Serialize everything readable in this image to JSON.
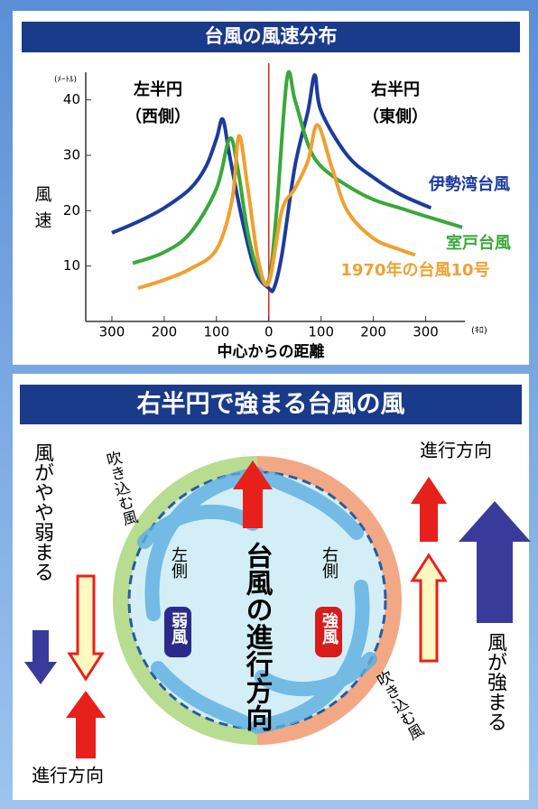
{
  "chart_data": {
    "type": "line",
    "title": "台風の風速分布",
    "x_label": "中心からの距離",
    "y_label": "風速",
    "x_unit": "(ｷﾛ)",
    "y_unit": "(ﾒｰﾄﾙ)",
    "annotations": [
      "左半円",
      "（西側）",
      "右半円",
      "（東側）"
    ],
    "xlim": [
      -350,
      375
    ],
    "ylim": [
      0,
      45
    ],
    "xticks": [
      {
        "value": -300,
        "label": "300"
      },
      {
        "value": -200,
        "label": "200"
      },
      {
        "value": -100,
        "label": "100"
      },
      0,
      100,
      200,
      300
    ],
    "yticks": [
      10,
      20,
      30,
      40
    ],
    "series": [
      {
        "name": "伊勢湾台風",
        "color": "#1c3c9c",
        "x": [
          -300,
          -250,
          -200,
          -150,
          -120,
          -100,
          -88,
          -75,
          -50,
          -25,
          0,
          10,
          25,
          50,
          75,
          88,
          100,
          150,
          200,
          250,
          310
        ],
        "values": [
          16,
          18,
          20.5,
          24,
          28,
          33,
          36.5,
          30,
          18,
          9,
          6,
          6,
          12,
          28,
          38,
          44.5,
          38,
          30,
          26,
          23,
          20.5
        ]
      },
      {
        "name": "室戸台風",
        "color": "#3aa83a",
        "x": [
          -260,
          -200,
          -150,
          -100,
          -75,
          -60,
          -40,
          -20,
          0,
          15,
          35,
          50,
          75,
          100,
          150,
          200,
          250,
          300,
          370
        ],
        "values": [
          10.5,
          12.5,
          16,
          24,
          33,
          28,
          16,
          9,
          7.5,
          20,
          44,
          40,
          32,
          28,
          24.5,
          22,
          20.5,
          19,
          17
        ]
      },
      {
        "name": "1970年の台風10号",
        "color": "#f0a030",
        "x": [
          -250,
          -200,
          -150,
          -100,
          -70,
          -57,
          -40,
          -20,
          0,
          25,
          50,
          75,
          93,
          120,
          150,
          200,
          250,
          280
        ],
        "values": [
          6,
          7.5,
          9.5,
          13,
          22,
          33.5,
          24,
          11,
          7,
          20,
          24,
          29,
          35.5,
          28,
          20,
          15,
          13,
          12
        ]
      }
    ]
  },
  "diagram": {
    "title": "右半円で強まる台風の風",
    "left_note": "風がやや弱まる",
    "inflow_left": "吹き込む風",
    "inflow_right": "吹き込む風",
    "direction_left": "進行方向",
    "direction_right": "進行方向",
    "left_side": "左側",
    "left_wind": "弱風",
    "center": "台風の進行方向",
    "right_side": "右側",
    "right_wind": "強風",
    "right_note": "風が強まる"
  }
}
